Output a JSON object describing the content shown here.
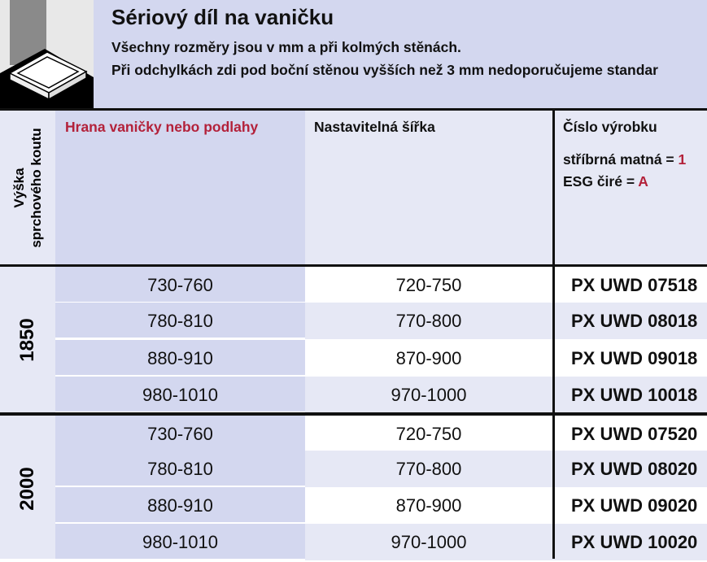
{
  "header": {
    "title": "Sériový díl na vaničku",
    "line1": "Všechny rozměry jsou v mm a při kolmých stěnách.",
    "line2": "Při odchylkách zdi pod boční stěnou vyšších než 3 mm nedoporučujeme standar"
  },
  "columns": {
    "height": "Výška\nsprchového koutu",
    "height_l1": "Výška",
    "height_l2": "sprchového koutu",
    "edge": "Hrana vaničky nebo podlahy",
    "width": "Nastavitelná šířka",
    "product": "Číslo výrobku",
    "finish1_label": "stříbrná matná =",
    "finish1_code": "1",
    "finish2_label": "ESG čiré =",
    "finish2_code": "A"
  },
  "colors": {
    "accent_red": "#b3213a",
    "lavender": "#d3d7ef",
    "light_lavender": "#e6e8f5"
  },
  "groups": [
    {
      "height": "1850",
      "rows": [
        {
          "edge": "730-760",
          "width": "720-750",
          "product": "PX UWD 07518"
        },
        {
          "edge": "780-810",
          "width": "770-800",
          "product": "PX UWD 08018"
        },
        {
          "edge": "880-910",
          "width": "870-900",
          "product": "PX UWD 09018"
        },
        {
          "edge": "980-1010",
          "width": "970-1000",
          "product": "PX UWD 10018"
        }
      ]
    },
    {
      "height": "2000",
      "rows": [
        {
          "edge": "730-760",
          "width": "720-750",
          "product": "PX UWD 07520"
        },
        {
          "edge": "780-810",
          "width": "770-800",
          "product": "PX UWD 08020"
        },
        {
          "edge": "880-910",
          "width": "870-900",
          "product": "PX UWD 09020"
        },
        {
          "edge": "980-1010",
          "width": "970-1000",
          "product": "PX UWD 10020"
        }
      ]
    }
  ]
}
